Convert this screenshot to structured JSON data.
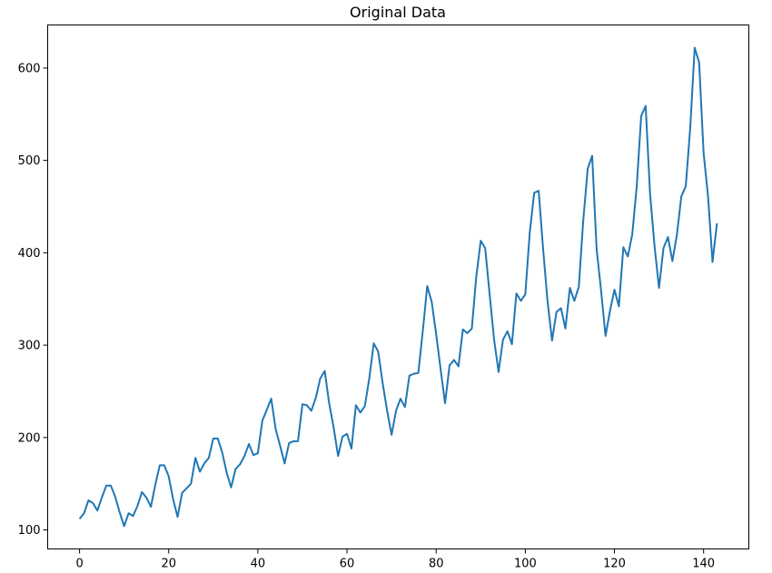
{
  "chart_data": {
    "type": "line",
    "title": "Original Data",
    "xlabel": "",
    "ylabel": "",
    "xlim": [
      -7.15,
      150.15
    ],
    "ylim": [
      79.4,
      646.6
    ],
    "x_ticks": [
      0,
      20,
      40,
      60,
      80,
      100,
      120,
      140
    ],
    "y_ticks": [
      100,
      200,
      300,
      400,
      500,
      600
    ],
    "grid": false,
    "line_color": "#1f77b4",
    "series": [
      {
        "values": [
          112,
          118,
          132,
          129,
          121,
          135,
          148,
          148,
          136,
          119,
          104,
          118,
          115,
          126,
          141,
          135,
          125,
          149,
          170,
          170,
          158,
          133,
          114,
          140,
          145,
          150,
          178,
          163,
          172,
          178,
          199,
          199,
          184,
          162,
          146,
          166,
          171,
          180,
          193,
          181,
          183,
          218,
          230,
          242,
          209,
          191,
          172,
          194,
          196,
          196,
          236,
          235,
          229,
          243,
          264,
          272,
          237,
          211,
          180,
          201,
          204,
          188,
          235,
          227,
          234,
          264,
          302,
          293,
          259,
          229,
          203,
          229,
          242,
          233,
          267,
          269,
          270,
          315,
          364,
          347,
          312,
          274,
          237,
          278,
          284,
          277,
          317,
          313,
          318,
          374,
          413,
          405,
          355,
          306,
          271,
          306,
          315,
          301,
          356,
          348,
          355,
          422,
          465,
          467,
          404,
          347,
          305,
          336,
          340,
          318,
          362,
          348,
          363,
          435,
          491,
          505,
          404,
          359,
          310,
          337,
          360,
          342,
          406,
          396,
          420,
          472,
          548,
          559,
          463,
          407,
          362,
          405,
          417,
          391,
          419,
          461,
          472,
          535,
          622,
          606,
          508,
          461,
          390,
          432
        ]
      }
    ]
  }
}
